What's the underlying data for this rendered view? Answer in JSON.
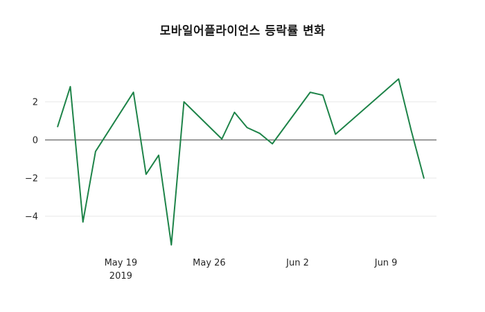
{
  "title": "모바일어플라이언스 등락률 변화",
  "colors": {
    "line": "#1d8348",
    "grid": "#e8e8e8",
    "zero_line": "#3a3a3a",
    "tick_text": "#262626",
    "background": "#ffffff"
  },
  "chart_data": {
    "type": "line",
    "title": "모바일어플라이언스 등락률 변화",
    "xlabel": "",
    "ylabel": "",
    "grid": "horizontal-faint",
    "zero_line": true,
    "legend": "none",
    "xlim": [
      "2019-05-13",
      "2019-06-13"
    ],
    "ylim": [
      -5.93,
      4.25
    ],
    "y_ticks": [
      2,
      0,
      -2,
      -4
    ],
    "x_ticks": [
      {
        "date": "2019-05-19",
        "label": "May 19",
        "sublabel": "2019"
      },
      {
        "date": "2019-05-26",
        "label": "May 26",
        "sublabel": ""
      },
      {
        "date": "2019-06-02",
        "label": "Jun 2",
        "sublabel": ""
      },
      {
        "date": "2019-06-09",
        "label": "Jun 9",
        "sublabel": ""
      }
    ],
    "series": [
      {
        "name": "등락률",
        "color": "#1d8348",
        "x": [
          "2019-05-14",
          "2019-05-15",
          "2019-05-16",
          "2019-05-17",
          "2019-05-20",
          "2019-05-21",
          "2019-05-22",
          "2019-05-23",
          "2019-05-24",
          "2019-05-27",
          "2019-05-28",
          "2019-05-29",
          "2019-05-30",
          "2019-05-31",
          "2019-06-03",
          "2019-06-04",
          "2019-06-05",
          "2019-06-10",
          "2019-06-11",
          "2019-06-12"
        ],
        "values": [
          0.7,
          2.8,
          -4.3,
          -0.6,
          2.5,
          -1.8,
          -0.8,
          -5.5,
          2.0,
          0.05,
          1.45,
          0.65,
          0.35,
          -0.2,
          2.5,
          2.35,
          0.3,
          3.2,
          0.5,
          -2.0
        ]
      }
    ]
  }
}
